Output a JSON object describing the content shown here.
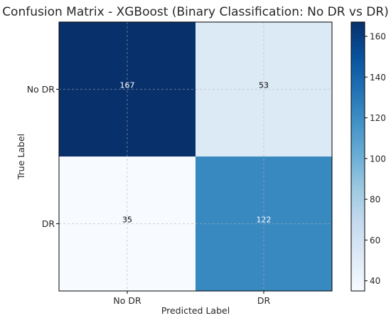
{
  "chart_data": {
    "type": "heatmap",
    "title": "Confusion Matrix - XGBoost (Binary Classification: No DR vs DR)",
    "xlabel": "Predicted Label",
    "ylabel": "True Label",
    "x_categories": [
      "No DR",
      "DR"
    ],
    "y_categories": [
      "No DR",
      "DR"
    ],
    "values": [
      [
        167,
        53
      ],
      [
        35,
        122
      ]
    ],
    "colormap": "Blues",
    "grid": true,
    "colorbar": {
      "range": [
        35,
        167
      ],
      "ticks": [
        40,
        60,
        80,
        100,
        120,
        140,
        160
      ],
      "placement": "right"
    }
  }
}
